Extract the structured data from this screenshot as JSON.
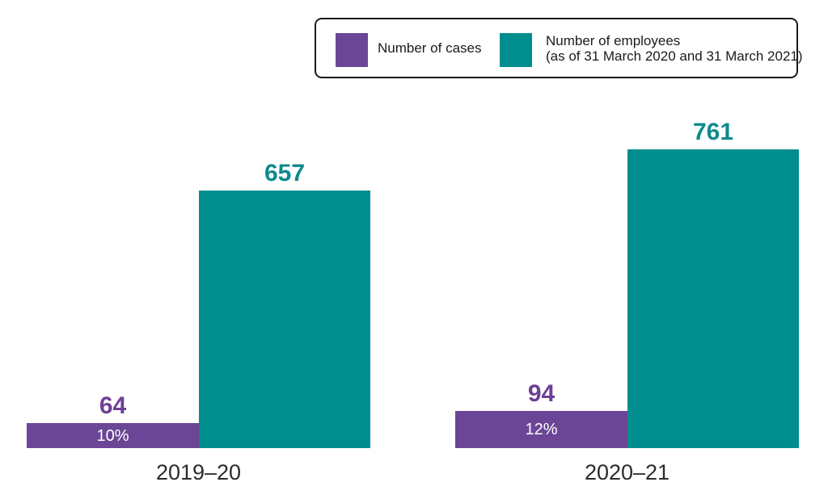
{
  "chart_data": {
    "type": "bar",
    "title": "",
    "categories": [
      "2019–20",
      "2020–21"
    ],
    "series": [
      {
        "name": "Number of cases",
        "color": "#6B4696",
        "label_color": "#6E3F96",
        "values": [
          64,
          94
        ],
        "inner_labels": [
          "10%",
          "12%"
        ]
      },
      {
        "name": "Number of employees (as of 31 March 2020 and 31 March 2021)",
        "color": "#008D8D",
        "label_color": "#0E8A8E",
        "values": [
          657,
          761
        ],
        "inner_labels": [
          "",
          ""
        ]
      }
    ],
    "ylim": [
      0,
      761
    ],
    "grid": false,
    "axes_shown": false,
    "legend_position": "top-right",
    "value_labels": "above-bars"
  },
  "legend": {
    "items": [
      {
        "label": "Number of cases",
        "color": "#6B4696"
      },
      {
        "label_line1": "Number of employees",
        "label_line2": "(as of 31 March 2020 and 31 March 2021)",
        "color": "#008D8D"
      }
    ]
  }
}
